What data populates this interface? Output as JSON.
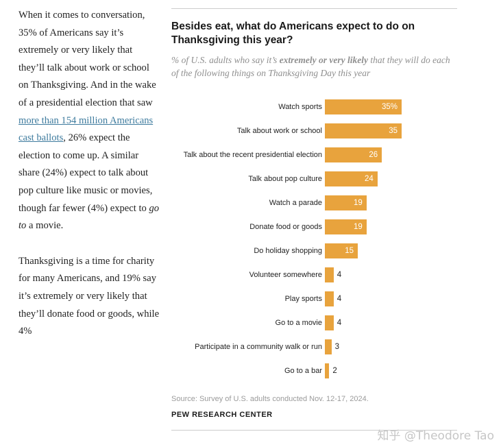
{
  "article": {
    "para1_part1": "When it comes to conversation, 35% of Americans say it’s extremely or very likely that they’ll talk about work or school on Thanksgiving. And in the wake of a presidential election that saw ",
    "para1_link": "more than 154 million Americans cast ballots",
    "para1_part2": ", 26% expect the election to come up. A similar share (24%) expect to talk about pop culture like music or movies, though far fewer (4%) expect to ",
    "para1_italic": "go to",
    "para1_part3": " a movie.",
    "para2": "Thanksgiving is a time for charity for many Americans, and 19% say it’s extremely or very likely that they’ll donate food or goods, while 4%"
  },
  "chart": {
    "title": "Besides eat, what do Americans expect to do on Thanksgiving this year?",
    "subtitle_prefix": "% of U.S. adults who say it’s ",
    "subtitle_bold": "extremely or very likely",
    "subtitle_suffix": " that they will do each of the following things on Thanksgiving Day this year",
    "source": "Source: Survey of U.S. adults conducted Nov. 12-17, 2024.",
    "brand": "PEW RESEARCH CENTER"
  },
  "chart_data": {
    "type": "bar",
    "orientation": "horizontal",
    "title": "Besides eat, what do Americans expect to do on Thanksgiving this year?",
    "categories": [
      "Watch sports",
      "Talk about work or school",
      "Talk about the recent presidential election",
      "Talk about pop culture",
      "Watch a parade",
      "Donate food or goods",
      "Do holiday shopping",
      "Volunteer somewhere",
      "Play sports",
      "Go to a movie",
      "Participate in a community walk or run",
      "Go to a bar"
    ],
    "values": [
      35,
      35,
      26,
      24,
      19,
      19,
      15,
      4,
      4,
      4,
      3,
      2
    ],
    "value_labels": [
      "35%",
      "35",
      "26",
      "24",
      "19",
      "19",
      "15",
      "4",
      "4",
      "4",
      "3",
      "2"
    ],
    "bar_color": "#E8A33D",
    "xlim": [
      0,
      35
    ],
    "grid": false,
    "legend": false
  },
  "watermark": "知乎 @Theodore Tao"
}
